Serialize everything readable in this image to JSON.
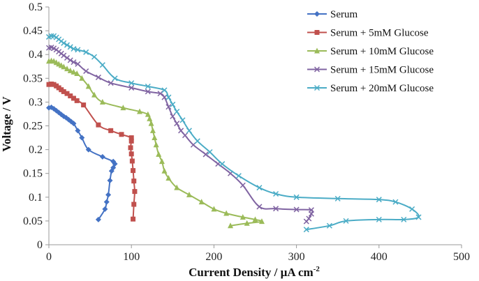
{
  "chart_data": {
    "type": "line",
    "xlabel": "Current Density / µA cm",
    "xlabel_sup": "-2",
    "ylabel": "Voltage / V",
    "xlim": [
      0,
      500
    ],
    "ylim": [
      0,
      0.5
    ],
    "xticks": [
      0,
      100,
      200,
      300,
      400,
      500
    ],
    "yticks": [
      0,
      0.05,
      0.1,
      0.15,
      0.2,
      0.25,
      0.3,
      0.35,
      0.4,
      0.45,
      0.5
    ],
    "xtick_labels": [
      "0",
      "100",
      "200",
      "300",
      "400",
      "500"
    ],
    "ytick_labels": [
      "0",
      "0.05",
      "0.1",
      "0.15",
      "0.2",
      "0.25",
      "0.3",
      "0.35",
      "0.4",
      "0.45",
      "0.5"
    ],
    "grid": false,
    "legend_position": "top-right",
    "series": [
      {
        "name": "Serum",
        "color": "#4472C4",
        "marker": "diamond",
        "points": [
          [
            0,
            0.288
          ],
          [
            3,
            0.289
          ],
          [
            6,
            0.286
          ],
          [
            9,
            0.282
          ],
          [
            12,
            0.278
          ],
          [
            15,
            0.274
          ],
          [
            18,
            0.27
          ],
          [
            21,
            0.267
          ],
          [
            24,
            0.263
          ],
          [
            27,
            0.259
          ],
          [
            30,
            0.255
          ],
          [
            35,
            0.24
          ],
          [
            40,
            0.225
          ],
          [
            48,
            0.2
          ],
          [
            65,
            0.185
          ],
          [
            78,
            0.175
          ],
          [
            80,
            0.17
          ],
          [
            78,
            0.162
          ],
          [
            76,
            0.155
          ],
          [
            74,
            0.135
          ],
          [
            72,
            0.105
          ],
          [
            70,
            0.09
          ],
          [
            68,
            0.075
          ],
          [
            60,
            0.053
          ]
        ]
      },
      {
        "name": "Serum + 5mM Glucose",
        "color": "#C0504D",
        "marker": "square",
        "points": [
          [
            0,
            0.337
          ],
          [
            3,
            0.338
          ],
          [
            6,
            0.337
          ],
          [
            9,
            0.334
          ],
          [
            12,
            0.33
          ],
          [
            15,
            0.326
          ],
          [
            18,
            0.322
          ],
          [
            22,
            0.318
          ],
          [
            26,
            0.313
          ],
          [
            30,
            0.308
          ],
          [
            34,
            0.303
          ],
          [
            42,
            0.294
          ],
          [
            60,
            0.252
          ],
          [
            75,
            0.24
          ],
          [
            88,
            0.232
          ],
          [
            100,
            0.225
          ],
          [
            100,
            0.218
          ],
          [
            99,
            0.204
          ],
          [
            100,
            0.191
          ],
          [
            101,
            0.176
          ],
          [
            102,
            0.156
          ],
          [
            103,
            0.134
          ],
          [
            104,
            0.112
          ],
          [
            103,
            0.085
          ],
          [
            102,
            0.054
          ]
        ]
      },
      {
        "name": "Serum + 10mM Glucose",
        "color": "#9BBB59",
        "marker": "triangle",
        "points": [
          [
            0,
            0.386
          ],
          [
            3,
            0.387
          ],
          [
            6,
            0.386
          ],
          [
            9,
            0.383
          ],
          [
            12,
            0.38
          ],
          [
            15,
            0.377
          ],
          [
            18,
            0.374
          ],
          [
            22,
            0.37
          ],
          [
            26,
            0.366
          ],
          [
            30,
            0.363
          ],
          [
            34,
            0.36
          ],
          [
            40,
            0.35
          ],
          [
            48,
            0.333
          ],
          [
            55,
            0.315
          ],
          [
            65,
            0.3
          ],
          [
            90,
            0.288
          ],
          [
            110,
            0.28
          ],
          [
            120,
            0.274
          ],
          [
            122,
            0.265
          ],
          [
            124,
            0.255
          ],
          [
            126,
            0.24
          ],
          [
            128,
            0.225
          ],
          [
            130,
            0.21
          ],
          [
            133,
            0.19
          ],
          [
            137,
            0.175
          ],
          [
            140,
            0.155
          ],
          [
            145,
            0.14
          ],
          [
            155,
            0.12
          ],
          [
            170,
            0.105
          ],
          [
            185,
            0.09
          ],
          [
            200,
            0.075
          ],
          [
            215,
            0.066
          ],
          [
            235,
            0.058
          ],
          [
            250,
            0.053
          ],
          [
            258,
            0.049
          ],
          [
            240,
            0.045
          ],
          [
            220,
            0.04
          ]
        ]
      },
      {
        "name": "Serum + 15mM Glucose",
        "color": "#8064A2",
        "marker": "x",
        "points": [
          [
            0,
            0.414
          ],
          [
            3,
            0.415
          ],
          [
            6,
            0.413
          ],
          [
            9,
            0.41
          ],
          [
            12,
            0.406
          ],
          [
            15,
            0.402
          ],
          [
            18,
            0.398
          ],
          [
            22,
            0.393
          ],
          [
            26,
            0.388
          ],
          [
            30,
            0.384
          ],
          [
            35,
            0.38
          ],
          [
            45,
            0.365
          ],
          [
            60,
            0.352
          ],
          [
            75,
            0.34
          ],
          [
            100,
            0.33
          ],
          [
            120,
            0.322
          ],
          [
            135,
            0.318
          ],
          [
            140,
            0.31
          ],
          [
            145,
            0.29
          ],
          [
            150,
            0.27
          ],
          [
            155,
            0.255
          ],
          [
            160,
            0.24
          ],
          [
            165,
            0.23
          ],
          [
            175,
            0.21
          ],
          [
            190,
            0.19
          ],
          [
            205,
            0.17
          ],
          [
            220,
            0.15
          ],
          [
            235,
            0.125
          ],
          [
            255,
            0.08
          ],
          [
            275,
            0.076
          ],
          [
            300,
            0.074
          ],
          [
            318,
            0.073
          ],
          [
            318,
            0.065
          ],
          [
            315,
            0.055
          ],
          [
            312,
            0.049
          ]
        ]
      },
      {
        "name": "Serum + 20mM Glucose",
        "color": "#4BACC6",
        "marker": "x",
        "points": [
          [
            0,
            0.437
          ],
          [
            3,
            0.439
          ],
          [
            6,
            0.439
          ],
          [
            9,
            0.436
          ],
          [
            12,
            0.432
          ],
          [
            15,
            0.428
          ],
          [
            18,
            0.424
          ],
          [
            22,
            0.42
          ],
          [
            26,
            0.416
          ],
          [
            30,
            0.412
          ],
          [
            35,
            0.41
          ],
          [
            45,
            0.405
          ],
          [
            55,
            0.395
          ],
          [
            65,
            0.378
          ],
          [
            80,
            0.35
          ],
          [
            100,
            0.34
          ],
          [
            120,
            0.333
          ],
          [
            140,
            0.325
          ],
          [
            145,
            0.31
          ],
          [
            150,
            0.295
          ],
          [
            155,
            0.28
          ],
          [
            162,
            0.262
          ],
          [
            170,
            0.24
          ],
          [
            180,
            0.218
          ],
          [
            195,
            0.195
          ],
          [
            210,
            0.17
          ],
          [
            230,
            0.145
          ],
          [
            255,
            0.12
          ],
          [
            275,
            0.107
          ],
          [
            300,
            0.1
          ],
          [
            350,
            0.097
          ],
          [
            400,
            0.095
          ],
          [
            420,
            0.09
          ],
          [
            440,
            0.075
          ],
          [
            448,
            0.058
          ],
          [
            430,
            0.053
          ],
          [
            400,
            0.053
          ],
          [
            360,
            0.05
          ],
          [
            340,
            0.04
          ],
          [
            312,
            0.032
          ]
        ]
      }
    ]
  }
}
